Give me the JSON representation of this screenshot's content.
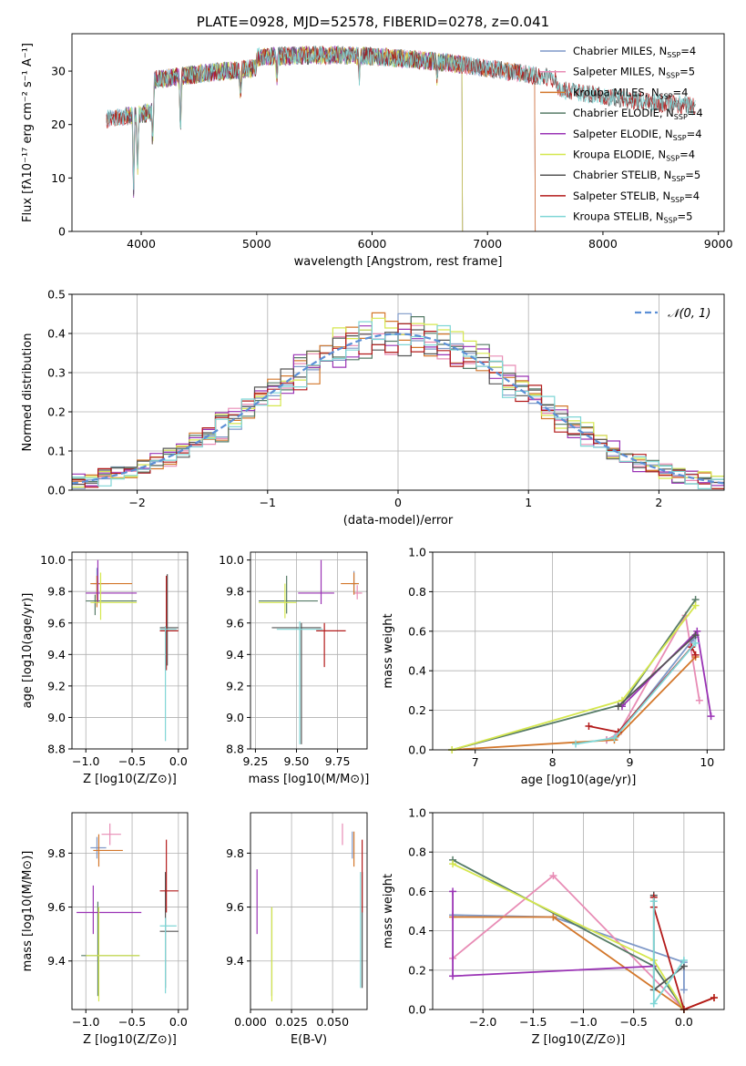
{
  "figure": {
    "title": "PLATE=0928, MJD=52578, FIBERID=0278, z=0.041"
  },
  "colors": {
    "Chabrier MILES": "#7f99c8",
    "Salpeter MILES": "#e88cb5",
    "Kroupa MILES": "#d3772b",
    "Chabrier ELODIE": "#567b67",
    "Salpeter ELODIE": "#9a33b5",
    "Kroupa ELODIE": "#d5e74e",
    "Chabrier STELIB": "#555555",
    "Salpeter STELIB": "#b31a1a",
    "Kroupa STELIB": "#7fd6d6",
    "gaussian": "#5b8fd6"
  },
  "chart_data": [
    {
      "id": "spectrum",
      "type": "line",
      "title": "PLATE=0928, MJD=52578, FIBERID=0278, z=0.041",
      "xlabel": "wavelength [Angstrom, rest frame]",
      "ylabel": "Flux [fλ10⁻¹⁷ erg cm⁻² s⁻¹ A⁻¹]",
      "xlim": [
        3400,
        9050
      ],
      "ylim": [
        0,
        37
      ],
      "xticks": [
        4000,
        5000,
        6000,
        7000,
        8000,
        9000
      ],
      "yticks": [
        0,
        10,
        20,
        30
      ],
      "grid": false,
      "legend_position": "right",
      "series": [
        {
          "name": "Chabrier MILES, N_SSP=4",
          "lib": "Chabrier MILES",
          "x": [
            3700,
            7420
          ],
          "values": [
            28,
            27
          ]
        },
        {
          "name": "Salpeter MILES, N_SSP=5",
          "lib": "Salpeter MILES",
          "x": [
            3700,
            7420
          ],
          "values": [
            28,
            27
          ]
        },
        {
          "name": "Kroupa MILES, N_SSP=4",
          "lib": "Kroupa MILES",
          "x": [
            3700,
            7420
          ],
          "values": [
            28,
            27
          ]
        },
        {
          "name": "Chabrier ELODIE, N_SSP=4",
          "lib": "Chabrier ELODIE",
          "x": [
            3880,
            6790
          ],
          "values": [
            28,
            33
          ]
        },
        {
          "name": "Salpeter ELODIE, N_SSP=4",
          "lib": "Salpeter ELODIE",
          "x": [
            3880,
            6790
          ],
          "values": [
            28,
            33
          ]
        },
        {
          "name": "Kroupa ELODIE, N_SSP=4",
          "lib": "Kroupa ELODIE",
          "x": [
            3880,
            6790
          ],
          "values": [
            28,
            33
          ]
        },
        {
          "name": "Chabrier STELIB, N_SSP=5",
          "lib": "Chabrier STELIB",
          "x": [
            3700,
            8800
          ],
          "values": [
            28,
            28
          ]
        },
        {
          "name": "Salpeter STELIB, N_SSP=4",
          "lib": "Salpeter STELIB",
          "x": [
            3700,
            8800
          ],
          "values": [
            28,
            28
          ]
        },
        {
          "name": "Kroupa STELIB, N_SSP=5",
          "lib": "Kroupa STELIB",
          "x": [
            3700,
            8800
          ],
          "values": [
            28,
            28
          ]
        }
      ]
    },
    {
      "id": "residuals",
      "type": "line",
      "xlabel": "(data-model)/error",
      "ylabel": "Normed distribution",
      "xlim": [
        -2.5,
        2.5
      ],
      "ylim": [
        0,
        0.5
      ],
      "xticks": [
        -2,
        -1,
        0,
        1,
        2
      ],
      "yticks": [
        0.0,
        0.1,
        0.2,
        0.3,
        0.4,
        0.5
      ],
      "grid": true,
      "legend_position": "top-right",
      "legend": [
        "𝒩(0, 1)"
      ],
      "note": "step histograms of residuals, one per SSP model, approx. following N(0,1)"
    },
    {
      "id": "age-vs-Z",
      "type": "scatter",
      "xlabel": "Z [log10(Z/Z⊙)]",
      "ylabel": "age [log10(age/yr)]",
      "xlim": [
        -1.15,
        0.1
      ],
      "ylim": [
        8.8,
        10.05
      ],
      "xticks": [
        -1.0,
        -0.5,
        0.0
      ],
      "yticks": [
        8.8,
        9.0,
        9.2,
        9.4,
        9.6,
        9.8,
        10.0
      ],
      "grid": true
    },
    {
      "id": "age-vs-mass",
      "type": "scatter",
      "xlabel": "mass [log10(M/M⊙)]",
      "ylabel": "",
      "xlim": [
        9.22,
        9.93
      ],
      "ylim": [
        8.8,
        10.05
      ],
      "xticks": [
        9.25,
        9.5,
        9.75
      ],
      "yticks": [
        8.8,
        9.0,
        9.2,
        9.4,
        9.6,
        9.8,
        10.0
      ],
      "grid": true
    },
    {
      "id": "massweight-vs-age",
      "type": "line",
      "xlabel": "age [log10(age/yr)]",
      "ylabel": "mass weight",
      "xlim": [
        6.45,
        10.22
      ],
      "ylim": [
        0,
        1
      ],
      "xticks": [
        7,
        8,
        9,
        10
      ],
      "yticks": [
        0.0,
        0.2,
        0.4,
        0.6,
        0.8,
        1.0
      ],
      "grid": true,
      "series": [
        {
          "lib": "Chabrier MILES",
          "x": [
            8.7,
            8.85,
            9.8,
            9.85
          ],
          "values": [
            0.05,
            0.08,
            0.55,
            0.57
          ]
        },
        {
          "lib": "Salpeter MILES",
          "x": [
            8.7,
            8.85,
            9.72,
            9.9
          ],
          "values": [
            0.05,
            0.08,
            0.68,
            0.25
          ]
        },
        {
          "lib": "Kroupa MILES",
          "x": [
            6.7,
            8.8,
            9.85
          ],
          "values": [
            0.0,
            0.05,
            0.47
          ]
        },
        {
          "lib": "Chabrier ELODIE",
          "x": [
            6.7,
            8.9,
            9.85
          ],
          "values": [
            0.0,
            0.23,
            0.76
          ]
        },
        {
          "lib": "Salpeter ELODIE",
          "x": [
            8.9,
            9.87,
            10.05
          ],
          "values": [
            0.22,
            0.6,
            0.17
          ]
        },
        {
          "lib": "Kroupa ELODIE",
          "x": [
            6.7,
            8.9,
            9.85
          ],
          "values": [
            0.0,
            0.25,
            0.73
          ]
        },
        {
          "lib": "Chabrier STELIB",
          "x": [
            8.85,
            9.85
          ],
          "values": [
            0.22,
            0.58
          ]
        },
        {
          "lib": "Salpeter STELIB",
          "x": [
            8.47,
            8.85,
            9.8,
            9.85
          ],
          "values": [
            0.12,
            0.09,
            0.52,
            0.48
          ]
        },
        {
          "lib": "Kroupa STELIB",
          "x": [
            8.3,
            8.8,
            9.85
          ],
          "values": [
            0.03,
            0.06,
            0.54
          ]
        }
      ]
    },
    {
      "id": "mass-vs-Z",
      "type": "scatter",
      "xlabel": "Z [log10(Z/Z⊙)]",
      "ylabel": "mass [log10(M/M⊙)]",
      "xlim": [
        -1.15,
        0.1
      ],
      "ylim": [
        9.22,
        9.95
      ],
      "xticks": [
        -1.0,
        -0.5,
        0.0
      ],
      "yticks": [
        9.4,
        9.6,
        9.8
      ],
      "grid": true
    },
    {
      "id": "mass-vs-ebv",
      "type": "scatter",
      "xlabel": "E(B-V)",
      "ylabel": "",
      "xlim": [
        0.0,
        0.071
      ],
      "ylim": [
        9.22,
        9.95
      ],
      "xticks": [
        0.0,
        0.025,
        0.05
      ],
      "yticks": [
        9.4,
        9.6,
        9.8
      ],
      "grid": true
    },
    {
      "id": "massweight-vs-Z",
      "type": "line",
      "xlabel": "Z [log10(Z/Z⊙)]",
      "ylabel": "mass weight",
      "xlim": [
        -2.5,
        0.4
      ],
      "ylim": [
        0,
        1
      ],
      "xticks": [
        -2.0,
        -1.5,
        -1.0,
        -0.5,
        0.0
      ],
      "yticks": [
        0.0,
        0.2,
        0.4,
        0.6,
        0.8,
        1.0
      ],
      "grid": true,
      "series": [
        {
          "lib": "Chabrier MILES",
          "x": [
            -2.3,
            -1.3,
            0.0,
            0.0
          ],
          "values": [
            0.48,
            0.47,
            0.24,
            0.1
          ]
        },
        {
          "lib": "Salpeter MILES",
          "x": [
            -2.3,
            -1.3,
            0.0
          ],
          "values": [
            0.26,
            0.68,
            0.0
          ]
        },
        {
          "lib": "Kroupa MILES",
          "x": [
            -2.3,
            -1.3,
            0.0,
            0.3
          ],
          "values": [
            0.47,
            0.47,
            0.0,
            0.06
          ]
        },
        {
          "lib": "Chabrier ELODIE",
          "x": [
            -2.3,
            -0.3,
            0.0
          ],
          "values": [
            0.76,
            0.22,
            0.0
          ]
        },
        {
          "lib": "Salpeter ELODIE",
          "x": [
            -2.3,
            -2.3,
            -0.3
          ],
          "values": [
            0.6,
            0.17,
            0.22
          ]
        },
        {
          "lib": "Kroupa ELODIE",
          "x": [
            -2.3,
            -0.3,
            0.0
          ],
          "values": [
            0.74,
            0.25,
            0.0
          ]
        },
        {
          "lib": "Chabrier STELIB",
          "x": [
            -0.3,
            -0.3,
            0.0
          ],
          "values": [
            0.58,
            0.1,
            0.22
          ]
        },
        {
          "lib": "Salpeter STELIB",
          "x": [
            -0.3,
            -0.3,
            0.0,
            0.3
          ],
          "values": [
            0.57,
            0.52,
            0.0,
            0.06
          ]
        },
        {
          "lib": "Kroupa STELIB",
          "x": [
            -0.3,
            -0.3,
            0.0
          ],
          "values": [
            0.55,
            0.03,
            0.25
          ]
        }
      ]
    }
  ]
}
